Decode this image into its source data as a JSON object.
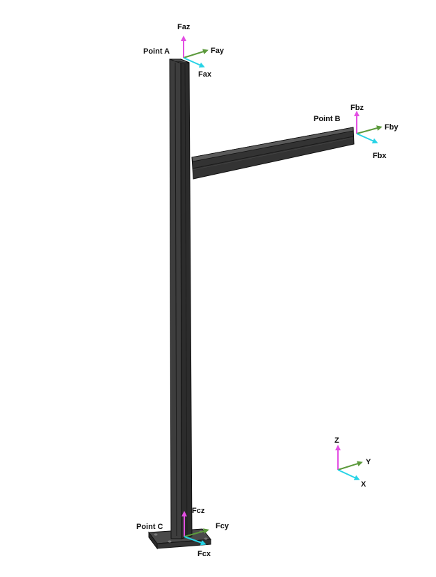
{
  "diagram": {
    "points": {
      "a": "Point A",
      "b": "Point B",
      "c": "Point C"
    },
    "forces": {
      "a": {
        "z": "Faz",
        "y": "Fay",
        "x": "Fax"
      },
      "b": {
        "z": "Fbz",
        "y": "Fby",
        "x": "Fbx"
      },
      "c": {
        "z": "Fcz",
        "y": "Fcy",
        "x": "Fcx"
      }
    },
    "axes": {
      "z": "Z",
      "y": "Y",
      "x": "X"
    }
  },
  "colors": {
    "background": "#ffffff",
    "structure": "#3a3a3a",
    "structure_edge": "#111111",
    "z_arrow": "#e34fe3",
    "y_arrow": "#5c9a3c",
    "x_arrow": "#27d3e6",
    "label": "#111111"
  }
}
